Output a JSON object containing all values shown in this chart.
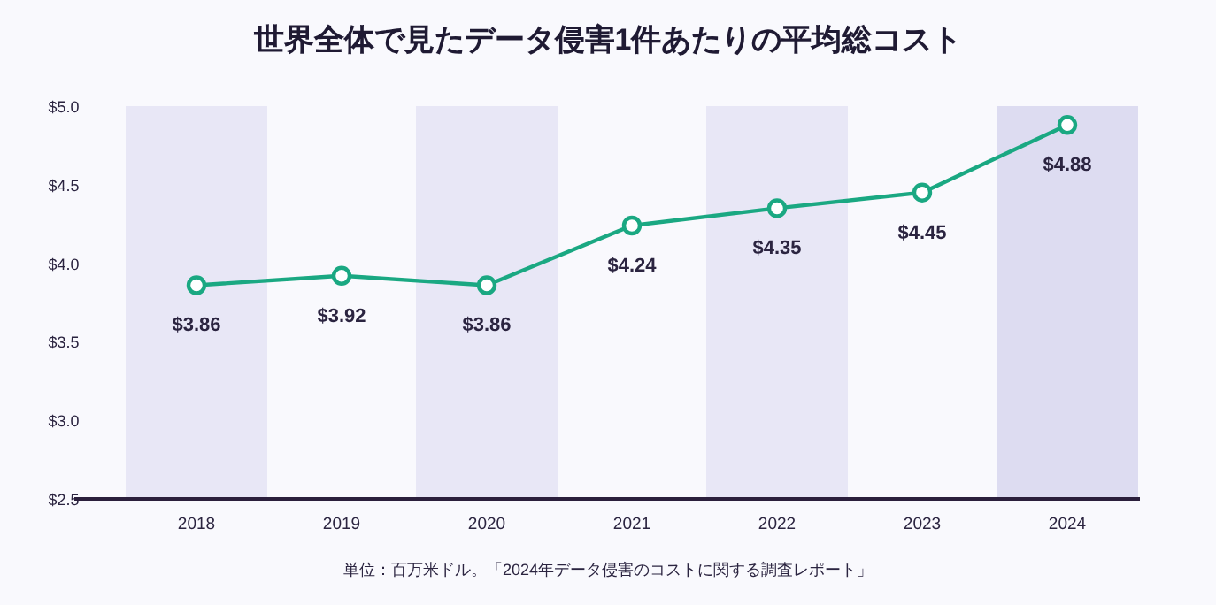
{
  "chart_data": {
    "type": "line",
    "title": "世界全体で見たデータ侵害1件あたりの平均総コスト",
    "categories": [
      "2018",
      "2019",
      "2020",
      "2021",
      "2022",
      "2023",
      "2024"
    ],
    "series": [
      {
        "color": "#1aa882",
        "values": [
          3.86,
          3.92,
          3.86,
          4.24,
          4.35,
          4.45,
          4.88
        ]
      }
    ],
    "ylim": [
      2.5,
      5.0
    ],
    "yticks": [
      {
        "value": 2.5,
        "label": "$2.5"
      },
      {
        "value": 3.0,
        "label": "$3.0"
      },
      {
        "value": 3.5,
        "label": "$3.5"
      },
      {
        "value": 4.0,
        "label": "$4.0"
      },
      {
        "value": 4.5,
        "label": "$4.5"
      },
      {
        "value": 5.0,
        "label": "$5.0"
      }
    ],
    "value_labels": [
      "$3.86",
      "$3.92",
      "$3.86",
      "$4.24",
      "$4.35",
      "$4.45",
      "$4.88"
    ],
    "marker": "circle",
    "line_style": "solid",
    "grid": false,
    "bands": [
      {
        "axis": "x",
        "from": "2018",
        "to": "2018",
        "color": "#e8e7f6"
      },
      {
        "axis": "x",
        "from": "2020",
        "to": "2020",
        "color": "#e8e7f6"
      },
      {
        "axis": "x",
        "from": "2022",
        "to": "2022",
        "color": "#e8e7f6"
      },
      {
        "axis": "x",
        "from": "2024",
        "to": "2024",
        "color": "#dddcf1"
      }
    ],
    "annotations": [
      "単位：百万米ドル。「2024年データ侵害のコストに関する調査レポート」"
    ]
  }
}
